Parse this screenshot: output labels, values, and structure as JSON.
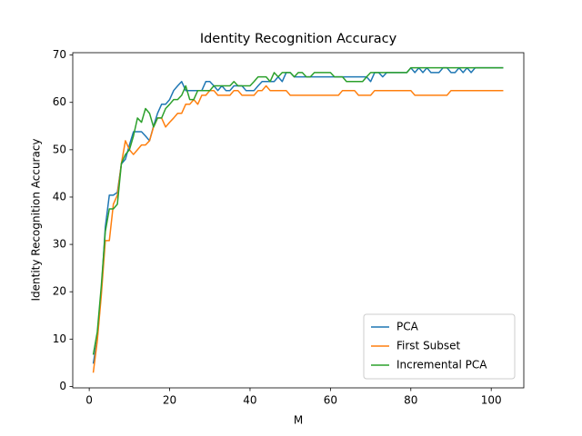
{
  "chart_data": {
    "type": "line",
    "title": "Identity Recognition Accuracy",
    "x_label": "M",
    "y_label": "Identity Recognition Accuracy",
    "x": [
      1,
      2,
      3,
      4,
      5,
      6,
      7,
      8,
      9,
      10,
      11,
      12,
      13,
      14,
      15,
      16,
      17,
      18,
      19,
      20,
      21,
      22,
      23,
      24,
      25,
      26,
      27,
      28,
      29,
      30,
      31,
      32,
      33,
      34,
      35,
      36,
      37,
      38,
      39,
      40,
      41,
      42,
      43,
      44,
      45,
      46,
      47,
      48,
      49,
      50,
      51,
      52,
      53,
      54,
      55,
      56,
      57,
      58,
      59,
      60,
      61,
      62,
      63,
      64,
      65,
      66,
      67,
      68,
      69,
      70,
      71,
      72,
      73,
      74,
      75,
      76,
      77,
      78,
      79,
      80,
      81,
      82,
      83,
      84,
      85,
      86,
      87,
      88,
      89,
      90,
      91,
      92,
      93,
      94,
      95,
      96,
      97,
      98,
      99,
      100,
      101,
      102,
      103
    ],
    "series": [
      {
        "name": "PCA",
        "color": "#1f77b4",
        "values": [
          4.8,
          10,
          20,
          33.7,
          40.4,
          40.4,
          41,
          47,
          48,
          51,
          53.8,
          53.8,
          53.8,
          52.9,
          51.9,
          55,
          57.7,
          59.6,
          59.6,
          60.6,
          62.5,
          63.5,
          64.4,
          62.5,
          62.5,
          62.5,
          62.5,
          62.5,
          64.4,
          64.4,
          63.5,
          62.5,
          63.5,
          62.5,
          62.5,
          63.5,
          63.5,
          63.5,
          62.5,
          62.5,
          62.5,
          63.5,
          64.4,
          64.4,
          64.4,
          64.4,
          65.4,
          64.4,
          66.3,
          66.3,
          65.4,
          65.4,
          65.4,
          65.4,
          65.4,
          65.4,
          65.4,
          65.4,
          65.4,
          65.4,
          65.4,
          65.4,
          65.4,
          65.4,
          65.4,
          65.4,
          65.4,
          65.4,
          65.4,
          64.4,
          66.3,
          66.3,
          65.4,
          66.3,
          66.3,
          66.3,
          66.3,
          66.3,
          66.3,
          67.3,
          66.3,
          67.3,
          66.3,
          67.3,
          66.3,
          66.3,
          66.3,
          67.3,
          67.3,
          66.3,
          66.3,
          67.3,
          66.3,
          67.3,
          66.3,
          67.3,
          67.3,
          67.3,
          67.3,
          67.3,
          67.3,
          67.3,
          67.3
        ]
      },
      {
        "name": "First Subset",
        "color": "#ff7f0e",
        "values": [
          2.9,
          9.6,
          19.2,
          30.8,
          30.8,
          38.5,
          40.4,
          47.1,
          51.9,
          50,
          49,
          50,
          51,
          51,
          51.9,
          54.8,
          56.7,
          56.7,
          54.8,
          55.8,
          56.7,
          57.7,
          57.7,
          59.6,
          59.6,
          60.6,
          59.6,
          61.5,
          61.5,
          62.5,
          62.5,
          61.5,
          61.5,
          61.5,
          61.5,
          62.5,
          62.5,
          61.5,
          61.5,
          61.5,
          61.5,
          62.5,
          62.5,
          63.5,
          62.5,
          62.5,
          62.5,
          62.5,
          62.5,
          61.5,
          61.5,
          61.5,
          61.5,
          61.5,
          61.5,
          61.5,
          61.5,
          61.5,
          61.5,
          61.5,
          61.5,
          61.5,
          62.5,
          62.5,
          62.5,
          62.5,
          61.5,
          61.5,
          61.5,
          61.5,
          62.5,
          62.5,
          62.5,
          62.5,
          62.5,
          62.5,
          62.5,
          62.5,
          62.5,
          62.5,
          61.5,
          61.5,
          61.5,
          61.5,
          61.5,
          61.5,
          61.5,
          61.5,
          61.5,
          62.5,
          62.5,
          62.5,
          62.5,
          62.5,
          62.5,
          62.5,
          62.5,
          62.5,
          62.5,
          62.5,
          62.5,
          62.5,
          62.5
        ]
      },
      {
        "name": "Incremental PCA",
        "color": "#2ca02c",
        "values": [
          6.7,
          11.5,
          21.2,
          32.7,
          37.5,
          37.5,
          38.5,
          47.1,
          49,
          50,
          52.9,
          56.7,
          55.8,
          58.7,
          57.7,
          54.8,
          56.7,
          56.7,
          58.7,
          59.6,
          60.6,
          60.6,
          61.5,
          63.5,
          60.6,
          60.6,
          62.5,
          62.5,
          62.5,
          62.5,
          63.5,
          63.5,
          63.5,
          63.5,
          63.5,
          64.4,
          63.5,
          63.5,
          63.5,
          63.5,
          64.4,
          65.4,
          65.4,
          65.4,
          64.4,
          66.3,
          65.4,
          66.3,
          66.3,
          66.3,
          65.4,
          66.3,
          66.3,
          65.4,
          65.4,
          66.3,
          66.3,
          66.3,
          66.3,
          66.3,
          65.4,
          65.4,
          65.4,
          64.4,
          64.4,
          64.4,
          64.4,
          64.4,
          65.4,
          66.3,
          66.3,
          66.3,
          66.3,
          66.3,
          66.3,
          66.3,
          66.3,
          66.3,
          66.3,
          67.3,
          67.3,
          67.3,
          67.3,
          67.3,
          67.3,
          67.3,
          67.3,
          67.3,
          67.3,
          67.3,
          67.3,
          67.3,
          67.3,
          67.3,
          67.3,
          67.3,
          67.3,
          67.3,
          67.3,
          67.3,
          67.3,
          67.3,
          67.3
        ]
      }
    ],
    "xlim": [
      -4.1,
      108.1
    ],
    "ylim": [
      -0.3,
      70.5
    ],
    "xticks": [
      0,
      20,
      40,
      60,
      80,
      100
    ],
    "yticks": [
      0,
      10,
      20,
      30,
      40,
      50,
      60,
      70
    ],
    "grid": false,
    "legend": "lower right"
  }
}
